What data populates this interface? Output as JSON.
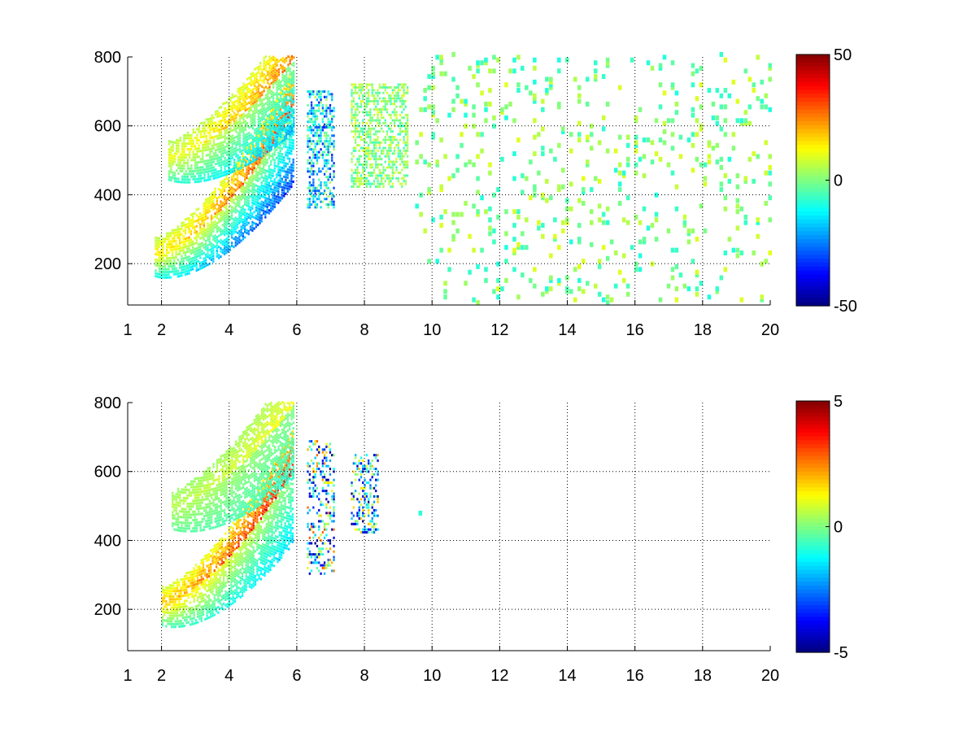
{
  "chart_data": [
    {
      "type": "heatmap",
      "title": "",
      "xlabel": "",
      "ylabel": "",
      "xlim": [
        1,
        20
      ],
      "ylim": [
        80,
        800
      ],
      "xticks": [
        "1",
        "2",
        "4",
        "6",
        "8",
        "10",
        "12",
        "14",
        "16",
        "18",
        "20"
      ],
      "yticks": [
        "200",
        "400",
        "600",
        "800"
      ],
      "grid": true,
      "colormap": "jet",
      "colorbar": {
        "clim": [
          -50,
          50
        ],
        "ticks": [
          "50",
          "0",
          "-50"
        ]
      },
      "features": [
        {
          "name": "lower ridge",
          "x_range": [
            1.8,
            5.9
          ],
          "y_start": 230,
          "y_end": 640,
          "peak": 42,
          "trough": -40
        },
        {
          "name": "upper ridge",
          "x_range": [
            2.2,
            5.9
          ],
          "y_start": 510,
          "y_end": 790,
          "peak": 32,
          "trough": -25
        },
        {
          "name": "middle band",
          "x_range": [
            6.3,
            7.1
          ],
          "y_range": [
            360,
            700
          ],
          "value_range": [
            -35,
            5
          ]
        },
        {
          "name": "right band",
          "x_range": [
            7.6,
            9.3
          ],
          "y_range": [
            420,
            720
          ],
          "value_range": [
            -8,
            10
          ]
        },
        {
          "name": "sparse noise",
          "x_range": [
            9.5,
            20
          ],
          "y_range": [
            80,
            800
          ],
          "value_range": [
            -10,
            10
          ]
        }
      ]
    },
    {
      "type": "heatmap",
      "title": "",
      "xlabel": "",
      "ylabel": "",
      "xlim": [
        1,
        20
      ],
      "ylim": [
        80,
        800
      ],
      "xticks": [
        "1",
        "2",
        "4",
        "6",
        "8",
        "10",
        "12",
        "14",
        "16",
        "18",
        "20"
      ],
      "yticks": [
        "200",
        "400",
        "600",
        "800"
      ],
      "grid": true,
      "colormap": "jet",
      "colorbar": {
        "clim": [
          -5,
          5
        ],
        "ticks": [
          "5",
          "0",
          "-5"
        ]
      },
      "features": [
        {
          "name": "lower ridge",
          "x_range": [
            2.0,
            5.9
          ],
          "y_start": 220,
          "y_end": 600,
          "peak": 5,
          "trough": -2
        },
        {
          "name": "upper ridge",
          "x_range": [
            2.3,
            5.9
          ],
          "y_start": 500,
          "y_end": 790,
          "peak": 1.5,
          "trough": -1
        },
        {
          "name": "middle band",
          "x_range": [
            6.3,
            7.1
          ],
          "y_range": [
            300,
            690
          ],
          "value_range": [
            -5,
            3
          ]
        },
        {
          "name": "right band",
          "x_range": [
            7.6,
            8.4
          ],
          "y_range": [
            420,
            650
          ],
          "value_range": [
            -5,
            2
          ]
        },
        {
          "name": "sparse points",
          "x_range": [
            9.0,
            11.0
          ],
          "y_range": [
            200,
            600
          ],
          "value_range": [
            -2,
            2
          ]
        }
      ]
    }
  ]
}
